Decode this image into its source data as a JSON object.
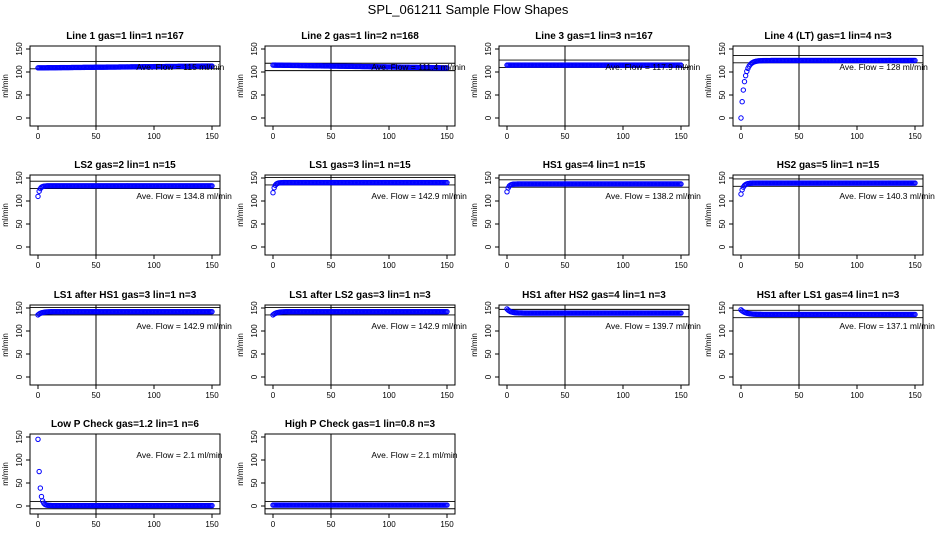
{
  "figure_title": "SPL_061211  Sample Flow Shapes",
  "colors": {
    "points": "#0000ff",
    "lines": "#000000"
  },
  "chart_data": [
    {
      "type": "scatter",
      "title": "Line 1 gas=1 lin=1 n=167",
      "ylabel": "ml/min",
      "xlim": [
        0,
        150
      ],
      "ylim": [
        0,
        150
      ],
      "xticks": [
        0,
        50,
        100,
        150
      ],
      "yticks": [
        0,
        50,
        100,
        150
      ],
      "vline": 50,
      "hlines": [
        107,
        123
      ],
      "annotation": "Ave. Flow =  115  ml/min",
      "curve": {
        "start": 109,
        "end": 113
      }
    },
    {
      "type": "scatter",
      "title": "Line 2 gas=1 lin=2 n=168",
      "ylabel": "ml/min",
      "xlim": [
        0,
        150
      ],
      "ylim": [
        0,
        150
      ],
      "xticks": [
        0,
        50,
        100,
        150
      ],
      "yticks": [
        0,
        50,
        100,
        150
      ],
      "vline": 50,
      "hlines": [
        103,
        119
      ],
      "annotation": "Ave. Flow =  111.4  ml/min",
      "curve": {
        "start": 115,
        "end": 109
      }
    },
    {
      "type": "scatter",
      "title": "Line 3 gas=1 lin=3 n=167",
      "ylabel": "ml/min",
      "xlim": [
        0,
        150
      ],
      "ylim": [
        0,
        150
      ],
      "xticks": [
        0,
        50,
        100,
        150
      ],
      "yticks": [
        0,
        50,
        100,
        150
      ],
      "vline": 50,
      "hlines": [
        110,
        126
      ],
      "annotation": "Ave. Flow =  117.9  ml/min",
      "curve": {
        "start": 115,
        "end": 115
      }
    },
    {
      "type": "scatter",
      "title": "Line 4 (LT) gas=1 lin=4 n=3",
      "ylabel": "ml/min",
      "xlim": [
        0,
        150
      ],
      "ylim": [
        0,
        150
      ],
      "xticks": [
        0,
        50,
        100,
        150
      ],
      "yticks": [
        0,
        50,
        100,
        150
      ],
      "vline": 50,
      "hlines": [
        120,
        136
      ],
      "annotation": "Ave. Flow =  128  ml/min",
      "curve": {
        "start": 0,
        "end": 125,
        "tau": 3
      }
    },
    {
      "type": "scatter",
      "title": "LS2 gas=2 lin=1 n=15",
      "ylabel": "ml/min",
      "xlim": [
        0,
        150
      ],
      "ylim": [
        0,
        150
      ],
      "xticks": [
        0,
        50,
        100,
        150
      ],
      "yticks": [
        0,
        50,
        100,
        150
      ],
      "vline": 50,
      "hlines": [
        127,
        143
      ],
      "annotation": "Ave. Flow =  134.8  ml/min",
      "curve": {
        "start": 110,
        "end": 133,
        "tau": 1.5
      }
    },
    {
      "type": "scatter",
      "title": "LS1 gas=3 lin=1 n=15",
      "ylabel": "ml/min",
      "xlim": [
        0,
        150
      ],
      "ylim": [
        0,
        150
      ],
      "xticks": [
        0,
        50,
        100,
        150
      ],
      "yticks": [
        0,
        50,
        100,
        150
      ],
      "vline": 50,
      "hlines": [
        135,
        151
      ],
      "annotation": "Ave. Flow =  142.9  ml/min",
      "curve": {
        "start": 118,
        "end": 140,
        "tau": 1.5
      }
    },
    {
      "type": "scatter",
      "title": "HS1 gas=4 lin=1 n=15",
      "ylabel": "ml/min",
      "xlim": [
        0,
        150
      ],
      "ylim": [
        0,
        150
      ],
      "xticks": [
        0,
        50,
        100,
        150
      ],
      "yticks": [
        0,
        50,
        100,
        150
      ],
      "vline": 50,
      "hlines": [
        130,
        146
      ],
      "annotation": "Ave. Flow =  138.2  ml/min",
      "curve": {
        "start": 120,
        "end": 137,
        "tau": 1.5
      }
    },
    {
      "type": "scatter",
      "title": "HS2 gas=5 lin=1 n=15",
      "ylabel": "ml/min",
      "xlim": [
        0,
        150
      ],
      "ylim": [
        0,
        150
      ],
      "xticks": [
        0,
        50,
        100,
        150
      ],
      "yticks": [
        0,
        50,
        100,
        150
      ],
      "vline": 50,
      "hlines": [
        132,
        148
      ],
      "annotation": "Ave. Flow =  140.3  ml/min",
      "curve": {
        "start": 115,
        "end": 139,
        "tau": 2
      }
    },
    {
      "type": "scatter",
      "title": "LS1 after HS1 gas=3 lin=1 n=3",
      "ylabel": "ml/min",
      "xlim": [
        0,
        150
      ],
      "ylim": [
        0,
        150
      ],
      "xticks": [
        0,
        50,
        100,
        150
      ],
      "yticks": [
        0,
        50,
        100,
        150
      ],
      "vline": 50,
      "hlines": [
        135,
        151
      ],
      "annotation": "Ave. Flow =  142.9  ml/min",
      "curve": {
        "start": 135,
        "end": 142,
        "tau": 3
      }
    },
    {
      "type": "scatter",
      "title": "LS1 after LS2 gas=3 lin=1 n=3",
      "ylabel": "ml/min",
      "xlim": [
        0,
        150
      ],
      "ylim": [
        0,
        150
      ],
      "xticks": [
        0,
        50,
        100,
        150
      ],
      "yticks": [
        0,
        50,
        100,
        150
      ],
      "vline": 50,
      "hlines": [
        135,
        151
      ],
      "annotation": "Ave. Flow =  142.9  ml/min",
      "curve": {
        "start": 135,
        "end": 142,
        "tau": 3
      }
    },
    {
      "type": "scatter",
      "title": "HS1 after HS2 gas=4 lin=1 n=3",
      "ylabel": "ml/min",
      "xlim": [
        0,
        150
      ],
      "ylim": [
        0,
        150
      ],
      "xticks": [
        0,
        50,
        100,
        150
      ],
      "yticks": [
        0,
        50,
        100,
        150
      ],
      "vline": 50,
      "hlines": [
        131,
        147
      ],
      "annotation": "Ave. Flow =  139.7  ml/min",
      "curve": {
        "start": 148,
        "end": 139,
        "tau": 3
      }
    },
    {
      "type": "scatter",
      "title": "HS1 after LS1 gas=4 lin=1 n=3",
      "ylabel": "ml/min",
      "xlim": [
        0,
        150
      ],
      "ylim": [
        0,
        150
      ],
      "xticks": [
        0,
        50,
        100,
        150
      ],
      "yticks": [
        0,
        50,
        100,
        150
      ],
      "vline": 50,
      "hlines": [
        129,
        145
      ],
      "annotation": "Ave. Flow =  137.1  ml/min",
      "curve": {
        "start": 146,
        "end": 136,
        "tau": 4
      }
    },
    {
      "type": "scatter",
      "title": "Low P Check gas=1.2 lin=1 n=6",
      "ylabel": "ml/min",
      "xlim": [
        0,
        150
      ],
      "ylim": [
        0,
        150
      ],
      "xticks": [
        0,
        50,
        100,
        150
      ],
      "yticks": [
        0,
        50,
        100,
        150
      ],
      "vline": 50,
      "hlines": [
        -6,
        10
      ],
      "annotation": "Ave. Flow =  2.1  ml/min",
      "curve": {
        "start": 145,
        "end": 1,
        "tau": 1.5
      }
    },
    {
      "type": "scatter",
      "title": "High P Check gas=1 lin=0.8 n=3",
      "ylabel": "ml/min",
      "xlim": [
        0,
        150
      ],
      "ylim": [
        0,
        150
      ],
      "xticks": [
        0,
        50,
        100,
        150
      ],
      "yticks": [
        0,
        50,
        100,
        150
      ],
      "vline": 50,
      "hlines": [
        -6,
        10
      ],
      "annotation": "Ave. Flow =  2.1  ml/min",
      "curve": {
        "start": 2,
        "end": 2
      }
    }
  ]
}
